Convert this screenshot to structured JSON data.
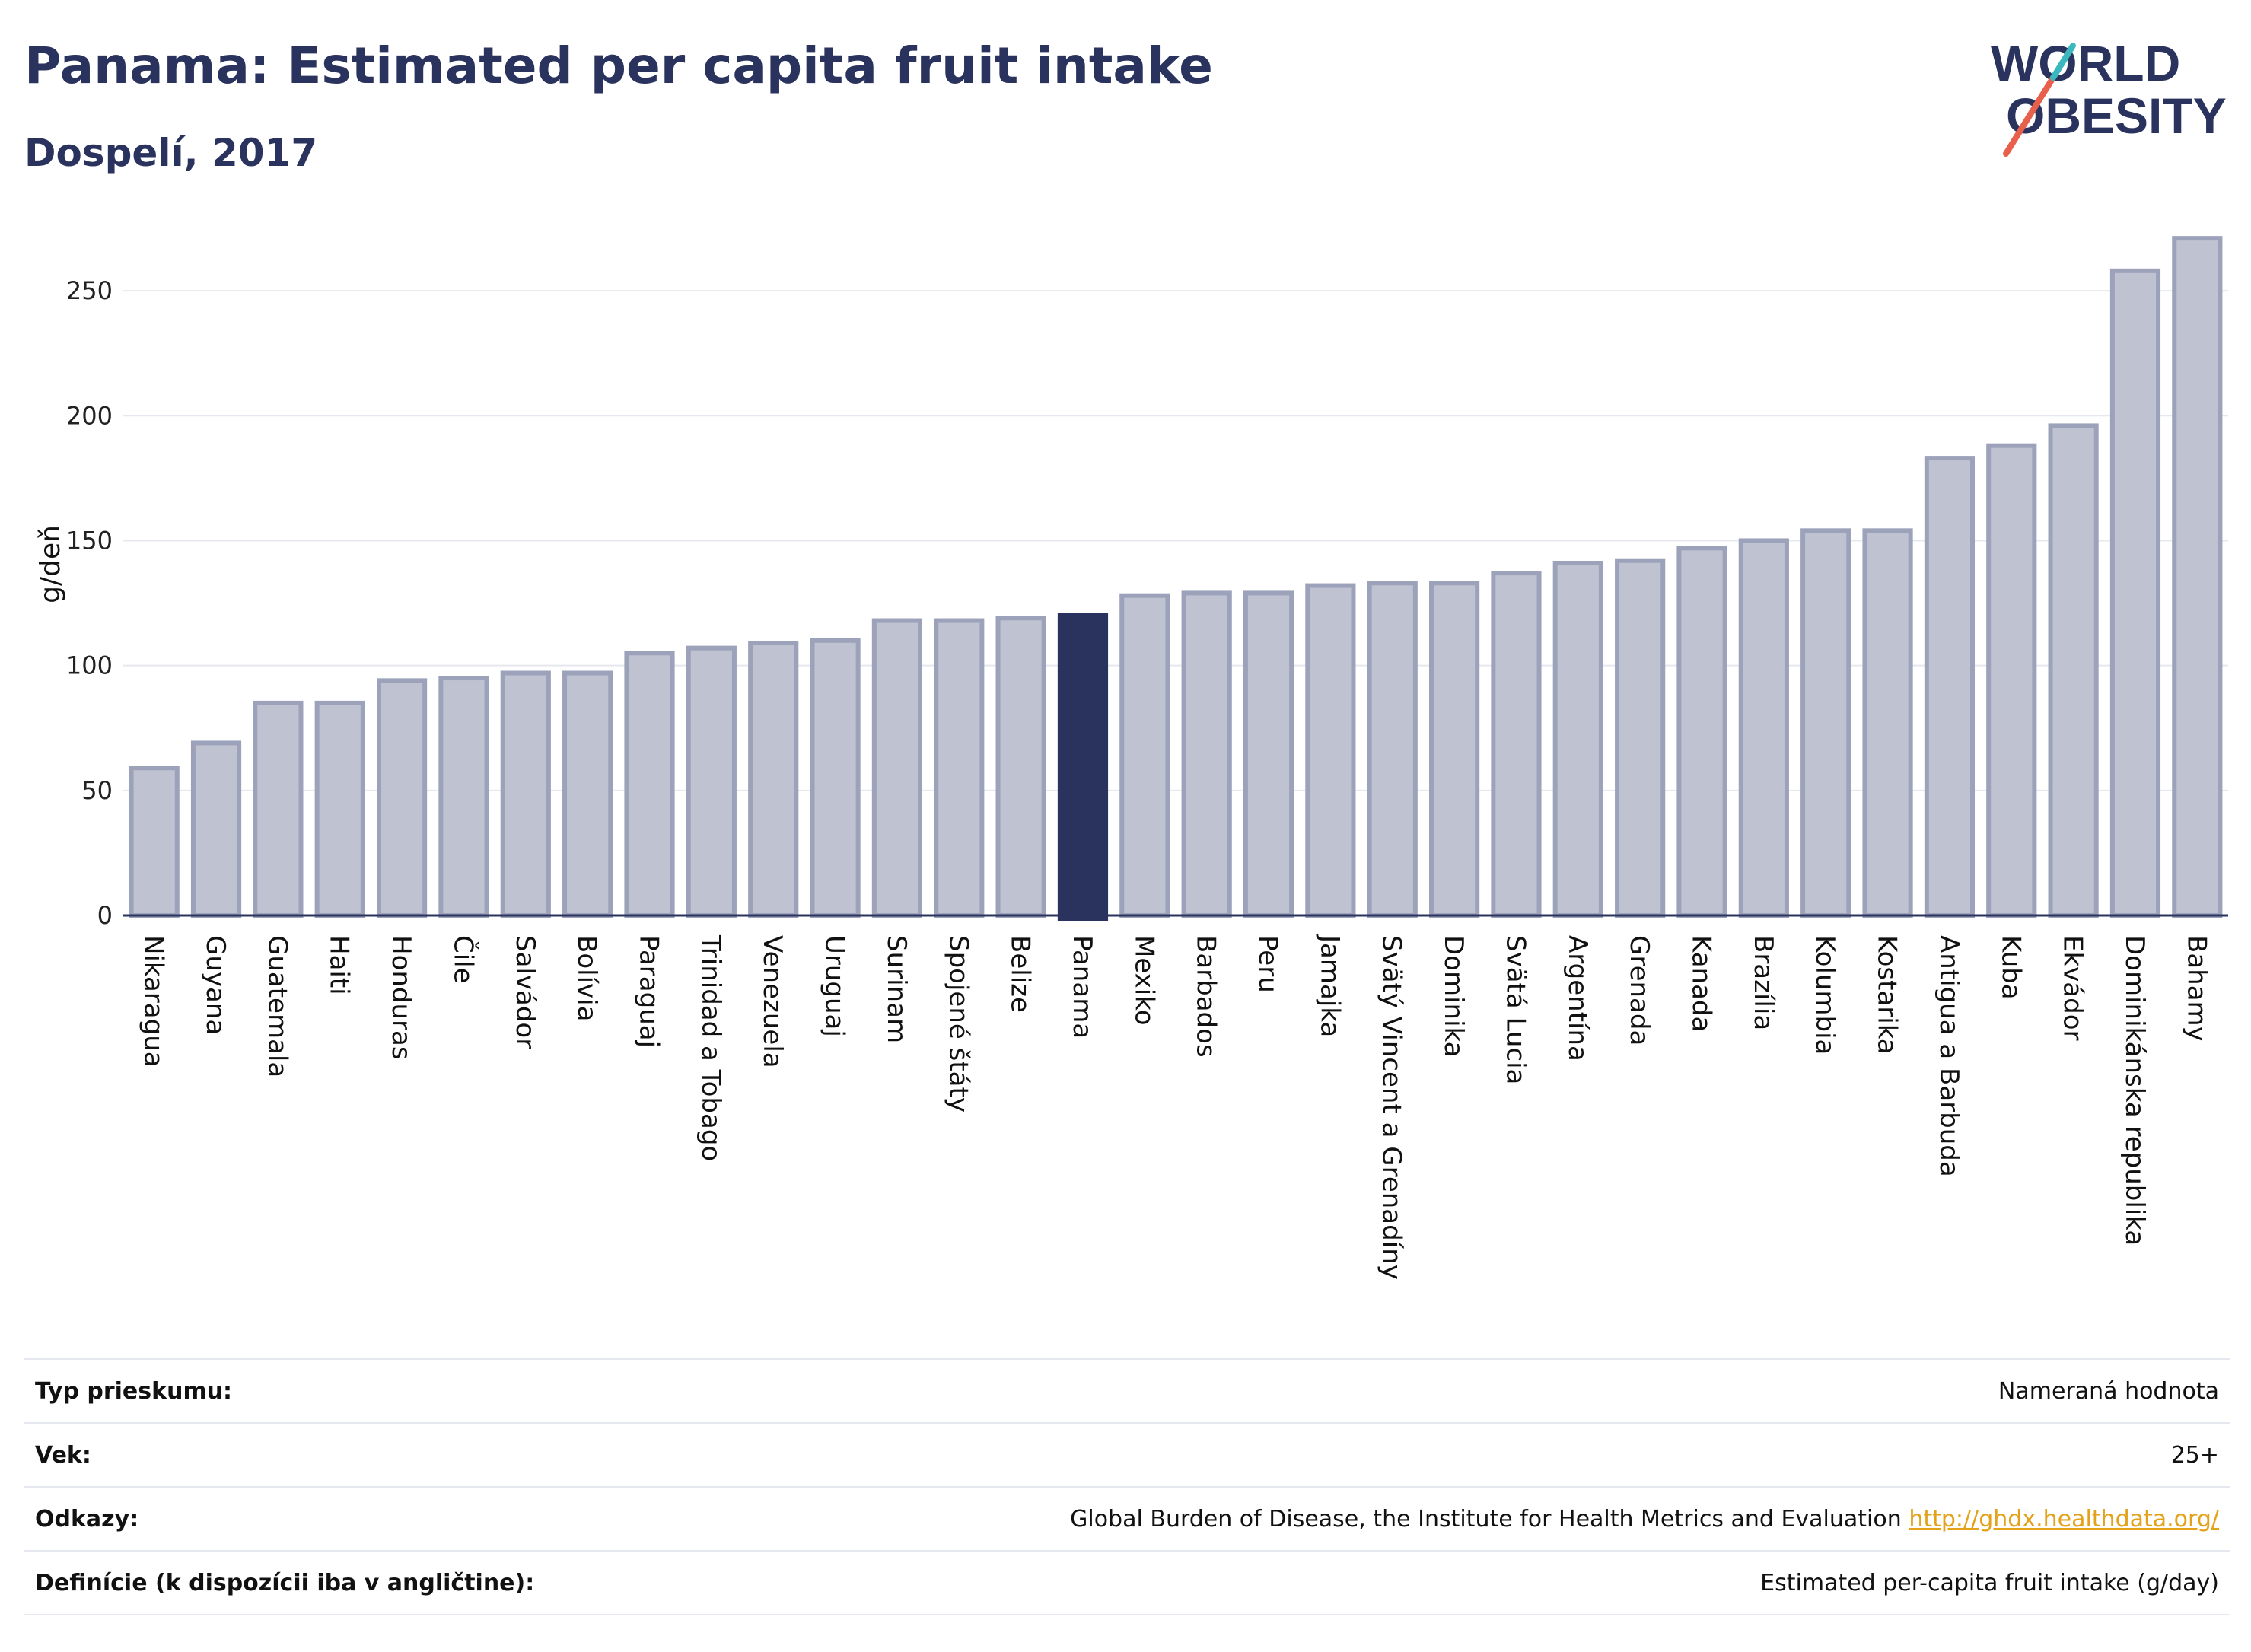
{
  "header": {
    "title": "Panama: Estimated per capita fruit intake",
    "subtitle": "Dospelí, 2017"
  },
  "logo": {
    "line1": "WORLD",
    "line2": "OBESITY",
    "colors": {
      "text": "#2a335d",
      "slash_red": "#e8604c",
      "slash_teal": "#3ab7bf"
    }
  },
  "chart_data": {
    "type": "bar",
    "ylabel": "g/deň",
    "xlabel": "",
    "ylim": [
      0,
      275
    ],
    "yticks": [
      0,
      50,
      100,
      150,
      200,
      250
    ],
    "grid": true,
    "highlight": "Panama",
    "colors": {
      "bar": "#bfc2d1",
      "bar_border": "#9da2bb",
      "highlight": "#2a335d",
      "grid": "#e6e8ef",
      "axis": "#2a335d"
    },
    "categories": [
      "Nikaragua",
      "Guyana",
      "Guatemala",
      "Haiti",
      "Honduras",
      "Čile",
      "Salvádor",
      "Bolívia",
      "Paraguaj",
      "Trinidad a Tobago",
      "Venezuela",
      "Uruguaj",
      "Surinam",
      "Spojené štáty",
      "Belize",
      "Panama",
      "Mexiko",
      "Barbados",
      "Peru",
      "Jamajka",
      "Svätý Vincent a Grenadíny",
      "Dominika",
      "Svätá Lucia",
      "Argentína",
      "Grenada",
      "Kanada",
      "Brazília",
      "Kolumbia",
      "Kostarika",
      "Antigua a Barbuda",
      "Kuba",
      "Ekvádor",
      "Dominikánska republika",
      "Bahamy"
    ],
    "values": [
      59,
      69,
      85,
      85,
      94,
      95,
      97,
      97,
      105,
      107,
      109,
      110,
      118,
      118,
      119,
      120,
      128,
      129,
      129,
      132,
      133,
      133,
      137,
      141,
      142,
      147,
      150,
      154,
      154,
      183,
      188,
      196,
      258,
      271
    ]
  },
  "info": [
    {
      "label": "Typ prieskumu:",
      "value": "Nameraná hodnota"
    },
    {
      "label": "Vek:",
      "value": "25+"
    },
    {
      "label": "Odkazy:",
      "value": "Global Burden of Disease, the Institute for Health Metrics and Evaluation",
      "link": "http://ghdx.healthdata.org/"
    },
    {
      "label": "Definície (k dispozícii iba v angličtine):",
      "value": "Estimated per-capita fruit intake (g/day)"
    }
  ]
}
